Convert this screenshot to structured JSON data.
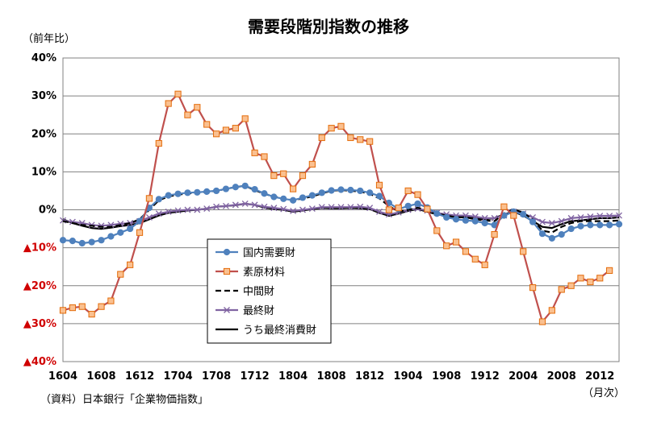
{
  "chart_data": {
    "type": "line",
    "title": "需要段階別指数の推移",
    "ylabel": "（前年比）",
    "xlabel": "（月次）",
    "source_note": "（資料）日本銀行「企業物価指数」",
    "ylim": [
      -40,
      40
    ],
    "y_ticks": [
      {
        "value": 40,
        "label": "40%"
      },
      {
        "value": 30,
        "label": "30%"
      },
      {
        "value": 20,
        "label": "20%"
      },
      {
        "value": 10,
        "label": "10%"
      },
      {
        "value": 0,
        "label": "0%"
      },
      {
        "value": -10,
        "label": "▲10%"
      },
      {
        "value": -20,
        "label": "▲20%"
      },
      {
        "value": -30,
        "label": "▲30%"
      },
      {
        "value": -40,
        "label": "▲40%"
      }
    ],
    "x_ticks": [
      {
        "index": 0,
        "label": "1604"
      },
      {
        "index": 4,
        "label": "1608"
      },
      {
        "index": 8,
        "label": "1612"
      },
      {
        "index": 12,
        "label": "1704"
      },
      {
        "index": 16,
        "label": "1708"
      },
      {
        "index": 20,
        "label": "1712"
      },
      {
        "index": 24,
        "label": "1804"
      },
      {
        "index": 28,
        "label": "1808"
      },
      {
        "index": 32,
        "label": "1812"
      },
      {
        "index": 36,
        "label": "1904"
      },
      {
        "index": 40,
        "label": "1908"
      },
      {
        "index": 44,
        "label": "1912"
      },
      {
        "index": 48,
        "label": "2004"
      },
      {
        "index": 52,
        "label": "2008"
      },
      {
        "index": 56,
        "label": "2012"
      }
    ],
    "grid": "horizontal",
    "legend_position": "bottom-left inside plot",
    "series": [
      {
        "name": "国内需要財",
        "color": "#4f81bd",
        "marker": "circle",
        "values": [
          -8.0,
          -8.2,
          -8.8,
          -8.5,
          -8.0,
          -7.0,
          -6.0,
          -5.0,
          -3.0,
          0.5,
          2.8,
          3.8,
          4.2,
          4.5,
          4.6,
          4.8,
          5.0,
          5.5,
          6.0,
          6.3,
          5.4,
          4.3,
          3.4,
          2.9,
          2.5,
          3.2,
          3.8,
          4.5,
          5.1,
          5.3,
          5.2,
          5.0,
          4.5,
          3.6,
          1.8,
          0.2,
          1.0,
          1.6,
          0.6,
          -1.0,
          -2.0,
          -2.5,
          -2.8,
          -3.0,
          -3.5,
          -4.0,
          -1.5,
          -0.5,
          -1.2,
          -3.2,
          -6.3,
          -7.5,
          -6.5,
          -5.0,
          -4.3,
          -4.0,
          -4.0,
          -4.0,
          -3.8
        ]
      },
      {
        "name": "素原材料",
        "color": "#c0504d",
        "marker": "square",
        "marker_fill": "#fac090",
        "values": [
          -26.5,
          -25.8,
          -25.5,
          -27.5,
          -25.5,
          -24.0,
          -17.0,
          -14.5,
          -6.0,
          3.0,
          17.5,
          28.0,
          30.5,
          25.0,
          27.0,
          22.5,
          20.0,
          21.0,
          21.5,
          24.0,
          15.0,
          14.0,
          9.0,
          9.5,
          5.5,
          9.0,
          12.0,
          19.0,
          21.5,
          22.0,
          19.0,
          18.5,
          18.0,
          6.5,
          0.0,
          0.5,
          5.0,
          4.0,
          0.2,
          -5.5,
          -9.5,
          -8.5,
          -11.0,
          -13.0,
          -14.5,
          -6.5,
          0.8,
          -1.5,
          -11.0,
          -20.5,
          -29.5,
          -26.5,
          -21.0,
          -20.0,
          -18.0,
          -19.0,
          -18.0,
          -16.0
        ]
      },
      {
        "name": "中間財",
        "color": "#000000",
        "dash": "7 4",
        "values": [
          -3.0,
          -3.5,
          -4.0,
          -4.2,
          -4.5,
          -4.5,
          -4.0,
          -3.5,
          -2.5,
          0.0,
          2.5,
          3.5,
          4.0,
          4.3,
          4.5,
          4.7,
          5.0,
          5.5,
          6.0,
          6.3,
          5.2,
          4.2,
          3.5,
          3.0,
          2.5,
          3.0,
          3.5,
          4.3,
          5.0,
          5.2,
          5.0,
          4.8,
          4.2,
          3.0,
          1.0,
          -0.5,
          0.0,
          0.5,
          0.0,
          -1.0,
          -1.5,
          -2.0,
          -2.0,
          -2.5,
          -2.8,
          -3.0,
          -1.0,
          0.2,
          -0.8,
          -2.5,
          -5.5,
          -6.0,
          -4.5,
          -3.5,
          -3.0,
          -3.0,
          -3.0,
          -3.0,
          -2.8
        ]
      },
      {
        "name": "最終財",
        "color": "#8064a2",
        "marker": "x",
        "values": [
          -2.8,
          -3.2,
          -3.5,
          -4.0,
          -4.2,
          -4.0,
          -3.7,
          -3.5,
          -3.0,
          -2.0,
          -1.0,
          -0.5,
          -0.2,
          0.0,
          0.0,
          0.3,
          0.8,
          1.0,
          1.3,
          1.6,
          1.3,
          0.8,
          0.5,
          0.2,
          -0.3,
          0.0,
          0.3,
          0.7,
          0.7,
          0.7,
          0.7,
          0.8,
          0.5,
          -0.5,
          -1.2,
          -0.7,
          0.0,
          0.3,
          -0.2,
          -0.8,
          -1.2,
          -1.5,
          -1.5,
          -1.8,
          -2.2,
          -2.2,
          -1.5,
          -0.5,
          -1.0,
          -2.0,
          -3.2,
          -3.5,
          -3.0,
          -2.2,
          -2.0,
          -1.8,
          -1.6,
          -1.6,
          -1.5
        ]
      },
      {
        "name": "うち最終消費財",
        "color": "#000000",
        "marker": "none",
        "values": [
          -2.5,
          -3.5,
          -4.2,
          -4.8,
          -5.0,
          -4.7,
          -4.3,
          -4.0,
          -3.5,
          -2.5,
          -1.5,
          -0.8,
          -0.5,
          -0.2,
          0.0,
          0.3,
          0.8,
          1.0,
          1.2,
          1.6,
          1.3,
          0.6,
          0.2,
          0.0,
          -0.5,
          -0.2,
          0.2,
          0.5,
          0.4,
          0.4,
          0.5,
          0.4,
          0.2,
          -0.8,
          -1.6,
          -1.0,
          -0.3,
          0.2,
          -0.5,
          -1.2,
          -1.5,
          -1.8,
          -1.8,
          -2.2,
          -2.5,
          -2.2,
          -1.2,
          -0.5,
          -1.5,
          -3.0,
          -4.5,
          -4.8,
          -3.8,
          -3.0,
          -2.8,
          -2.5,
          -2.2,
          -2.2,
          -2.0
        ]
      }
    ]
  }
}
